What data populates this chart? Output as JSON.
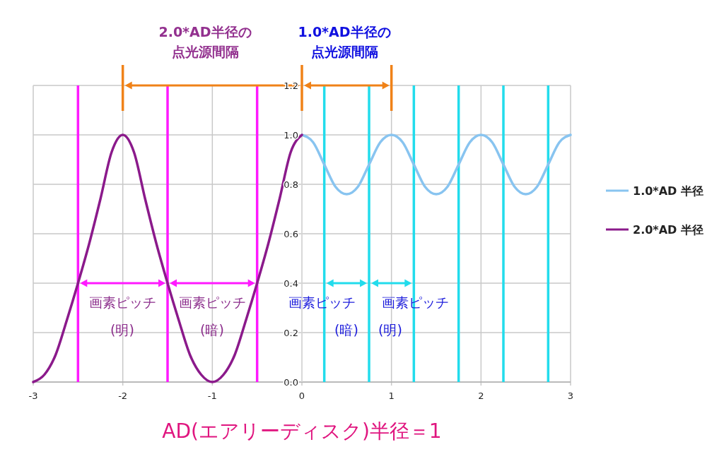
{
  "chart_data": {
    "type": "line",
    "xlabel": "AD(エアリーディスク)半径＝1",
    "series": [
      {
        "name": "1.0*AD 半径",
        "color": "#88c4f0",
        "x": [
          0,
          0.125,
          0.25,
          0.375,
          0.5,
          0.625,
          0.75,
          0.875,
          1,
          1.125,
          1.25,
          1.375,
          1.5,
          1.625,
          1.75,
          1.875,
          2,
          2.125,
          2.25,
          2.375,
          2.5,
          2.625,
          2.75,
          2.875,
          3
        ],
        "values": [
          1,
          0.97,
          0.88,
          0.79,
          0.76,
          0.79,
          0.88,
          0.97,
          1,
          0.97,
          0.88,
          0.79,
          0.76,
          0.79,
          0.88,
          0.97,
          1,
          0.97,
          0.88,
          0.79,
          0.76,
          0.79,
          0.88,
          0.97,
          1
        ]
      },
      {
        "name": "2.0*AD 半径",
        "color": "#8b1a8b",
        "x": [
          -3,
          -2.875,
          -2.75,
          -2.625,
          -2.5,
          -2.375,
          -2.25,
          -2.125,
          -2,
          -1.875,
          -1.75,
          -1.625,
          -1.5,
          -1.375,
          -1.25,
          -1.125,
          -1,
          -0.875,
          -0.75,
          -0.625,
          -0.5,
          -0.375,
          -0.25,
          -0.125,
          0
        ],
        "values": [
          0,
          0.03,
          0.11,
          0.25,
          0.4,
          0.56,
          0.74,
          0.93,
          1,
          0.93,
          0.74,
          0.56,
          0.4,
          0.25,
          0.11,
          0.03,
          0,
          0.03,
          0.11,
          0.25,
          0.4,
          0.56,
          0.74,
          0.93,
          1
        ]
      }
    ],
    "xlim": [
      -3,
      3
    ],
    "xticks": [
      -3,
      -2,
      -1,
      0,
      1,
      2,
      3
    ],
    "ylim": [
      0,
      1.2
    ],
    "yticks": [
      {
        "value": 0,
        "label": "0.0"
      },
      {
        "value": 0.2,
        "label": "0.2"
      },
      {
        "value": 0.4,
        "label": "0.4"
      },
      {
        "value": 0.6,
        "label": "0.6"
      },
      {
        "value": 0.8,
        "label": "0.8"
      },
      {
        "value": 1,
        "label": "1.0"
      },
      {
        "value": 1.2,
        "label": "1.2"
      }
    ],
    "grid": true,
    "legend": "right",
    "marker": "none",
    "line_style": "solid",
    "ref_lines": [
      {
        "axis": "x",
        "value": -2.5,
        "color": "#ff1aff"
      },
      {
        "axis": "x",
        "value": -1.5,
        "color": "#ff1aff"
      },
      {
        "axis": "x",
        "value": -0.5,
        "color": "#ff1aff"
      },
      {
        "axis": "x",
        "value": 0.25,
        "color": "#22dcec"
      },
      {
        "axis": "x",
        "value": 0.75,
        "color": "#22dcec"
      },
      {
        "axis": "x",
        "value": 1.25,
        "color": "#22dcec"
      },
      {
        "axis": "x",
        "value": 1.75,
        "color": "#22dcec"
      },
      {
        "axis": "x",
        "value": 2.25,
        "color": "#22dcec"
      },
      {
        "axis": "x",
        "value": 2.75,
        "color": "#22dcec"
      }
    ],
    "annotations": [
      "2.0*AD半径の",
      "点光源間隔",
      "1.0*AD半径の",
      "点光源間隔",
      "画素ピッチ",
      "(明)",
      "画素ピッチ",
      "(暗)",
      "画素ピッチ",
      "(暗)",
      "画素ピッチ",
      "(明)"
    ]
  }
}
